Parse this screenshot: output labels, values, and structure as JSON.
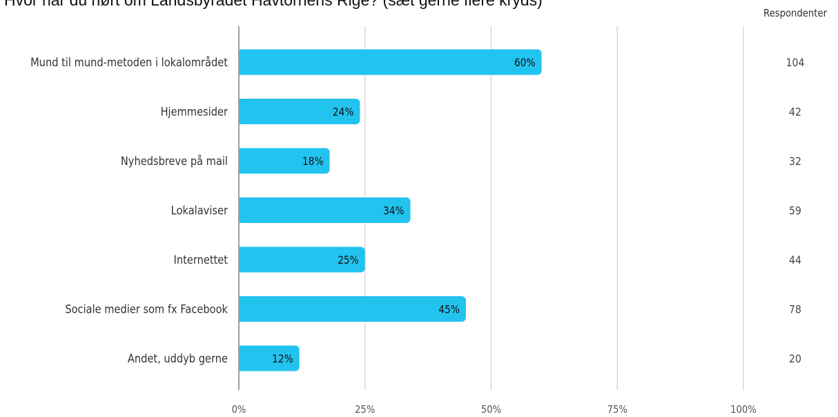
{
  "chart_data": {
    "type": "bar",
    "orientation": "horizontal",
    "title": "Hvor har du hørt om Landsbyrådet Havtornens Rige? (sæt gerne flere kryds)",
    "categories": [
      "Mund til mund-metoden i lokalområdet",
      "Hjemmesider",
      "Nyhedsbreve på mail",
      "Lokalaviser",
      "Internettet",
      "Sociale medier som fx Facebook",
      "Andet, uddyb gerne"
    ],
    "values": [
      60,
      24,
      18,
      34,
      25,
      45,
      12
    ],
    "data_labels": [
      "60%",
      "24%",
      "18%",
      "34%",
      "25%",
      "45%",
      "12%"
    ],
    "respondents_header": "Respondenter",
    "respondents": [
      "104",
      "42",
      "32",
      "59",
      "44",
      "78",
      "20"
    ],
    "x_ticks": [
      "0%",
      "25%",
      "50%",
      "75%",
      "100%"
    ],
    "xlim": [
      0,
      100
    ],
    "grid": true,
    "bar_color": "#22C3EF",
    "grid_color": "#D0D0D0",
    "axis_color": "#9E9E9E"
  }
}
